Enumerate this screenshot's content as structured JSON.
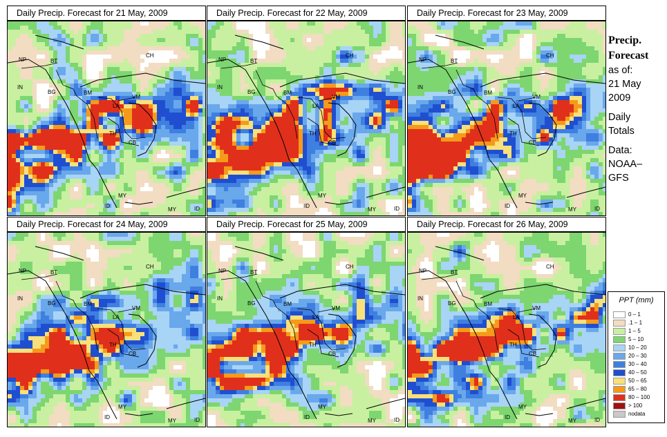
{
  "panels": [
    {
      "title": "Daily Precip. Forecast for  21 May, 2009",
      "seed": 11
    },
    {
      "title": "Daily Precip. Forecast for  22 May, 2009",
      "seed": 23
    },
    {
      "title": "Daily Precip. Forecast for  23 May, 2009",
      "seed": 37
    },
    {
      "title": "Daily Precip. Forecast for  24 May, 2009",
      "seed": 41
    },
    {
      "title": "Daily Precip. Forecast for  25 May, 2009",
      "seed": 53
    },
    {
      "title": "Daily Precip. Forecast for  26 May, 2009",
      "seed": 67
    }
  ],
  "country_labels": [
    "NP",
    "BT",
    "IN",
    "BG",
    "BM",
    "CH",
    "VM",
    "LA",
    "TH",
    "CB",
    "MY",
    "ID",
    "MY",
    "ID"
  ],
  "side": {
    "title_line1": "Precip.",
    "title_line2": "Forecast",
    "asof": "as of:",
    "date": "21 May",
    "year": "2009",
    "daily": "Daily",
    "totals": "Totals",
    "data_label": "Data:",
    "source1": "NOAA–",
    "source2": "GFS"
  },
  "legend": {
    "title": "PPT (mm)",
    "items": [
      {
        "label": "0 – 1",
        "color": "#ffffff"
      },
      {
        "label": ".1 – 1",
        "color": "#f2dcc2"
      },
      {
        "label": "1 – 5",
        "color": "#c8f0a0"
      },
      {
        "label": "5 – 10",
        "color": "#7dd670"
      },
      {
        "label": "10 – 20",
        "color": "#a8d4f5"
      },
      {
        "label": "20 – 30",
        "color": "#6aa8ec"
      },
      {
        "label": "30 – 40",
        "color": "#3f7fe0"
      },
      {
        "label": "40 – 50",
        "color": "#1f4fd0"
      },
      {
        "label": "50 – 65",
        "color": "#f8e07a"
      },
      {
        "label": "65 – 80",
        "color": "#f59a1a"
      },
      {
        "label": "80 – 100",
        "color": "#e0301c"
      },
      {
        "label": "> 100",
        "color": "#a01010"
      },
      {
        "label": "nodata",
        "color": "#c8c8c8"
      }
    ]
  }
}
